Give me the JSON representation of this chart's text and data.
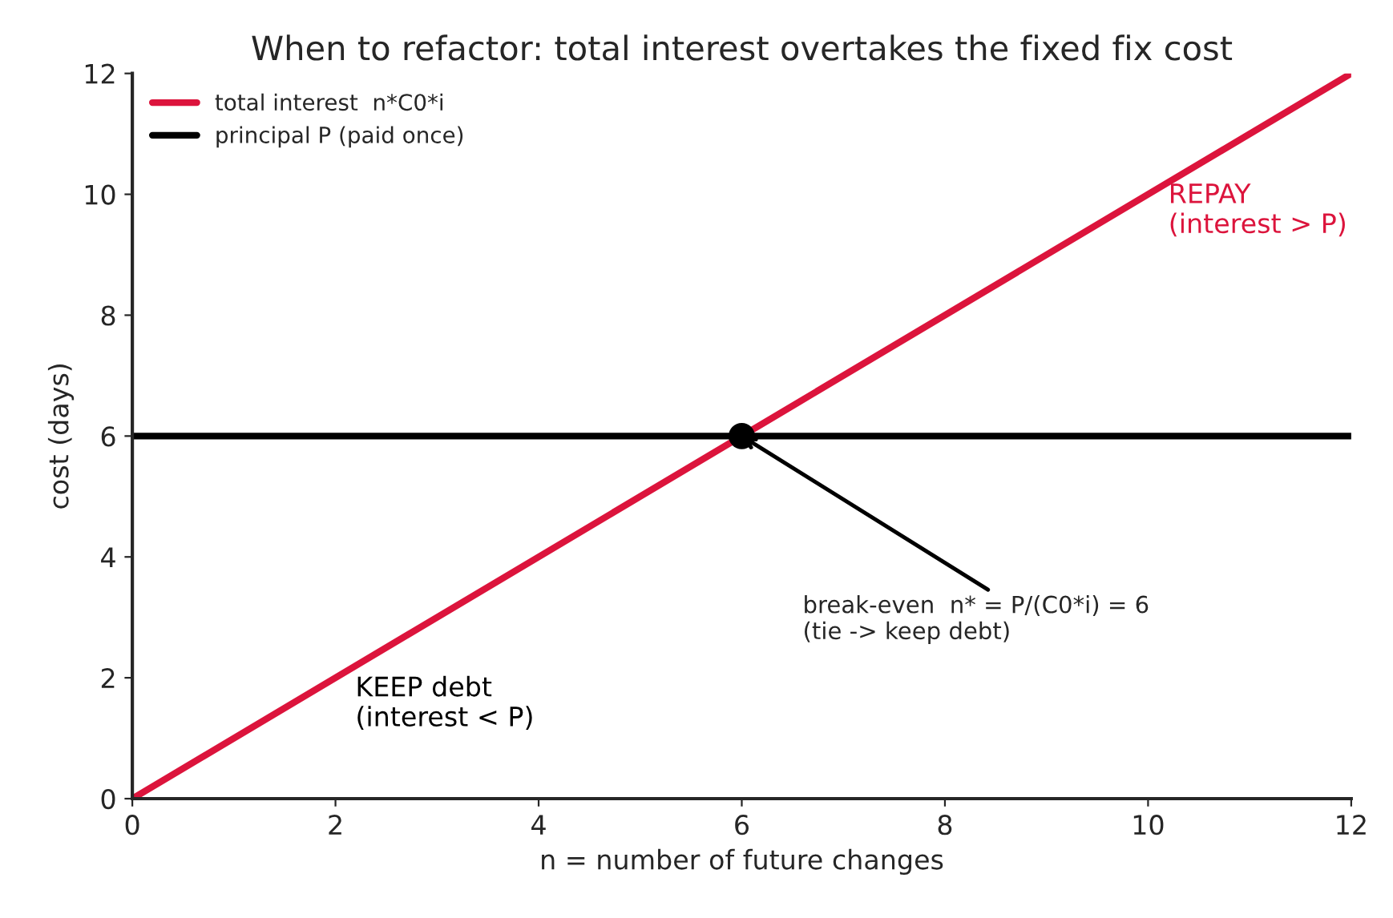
{
  "chart_data": {
    "type": "line",
    "title": "When to refactor: total interest overtakes the fixed fix cost",
    "xlabel": "n = number of future changes",
    "ylabel": "cost (days)",
    "series": [
      {
        "name": "total interest  n*C0*i",
        "color": "#dc143c",
        "x": [
          0,
          12
        ],
        "values": [
          0,
          12
        ]
      },
      {
        "name": "principal P (paid once)",
        "color": "#000000",
        "x": [
          0,
          12
        ],
        "values": [
          6,
          6
        ]
      },
      {
        "type": "scatter",
        "color": "#000000",
        "x": [
          6
        ],
        "values": [
          6
        ],
        "marker": "circle"
      }
    ],
    "annotations": [
      "REPAY\n(interest > P)",
      "KEEP debt\n(interest < P)",
      {
        "text": "break-even  n* = P/(C0*i) = 6\n(tie -> keep debt)",
        "x": 6,
        "y": 6
      }
    ],
    "xlim": [
      0,
      12
    ],
    "ylim": [
      0,
      12
    ],
    "xticks": [
      0,
      2,
      4,
      6,
      8,
      10,
      12
    ],
    "yticks": [
      0,
      2,
      4,
      6,
      8,
      10,
      12
    ],
    "grid": false,
    "legend": "top left",
    "line_style": "solid"
  }
}
